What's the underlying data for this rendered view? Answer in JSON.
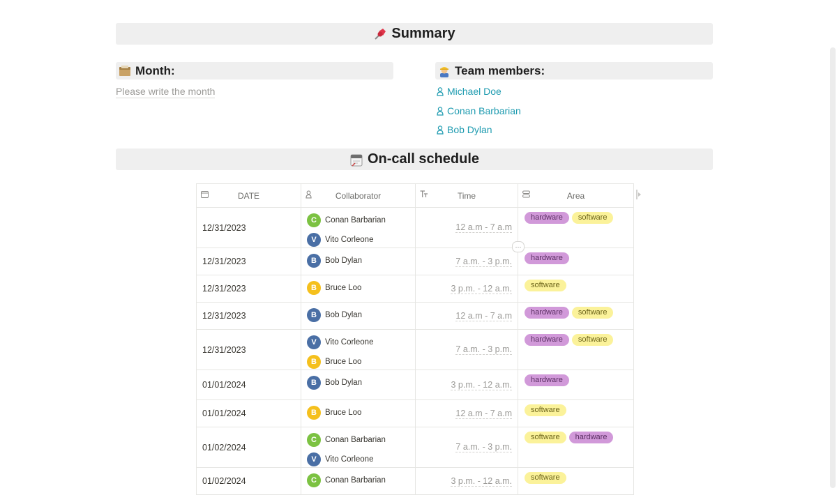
{
  "summary": {
    "title": "Summary",
    "icon": "pushpin-icon"
  },
  "month": {
    "label": "Month:",
    "placeholder": "Please write the month",
    "icon": "card-box-icon"
  },
  "team": {
    "label": "Team members:",
    "icon": "worker-icon",
    "members": [
      "Michael Doe",
      "Conan Barbarian",
      "Bob Dylan"
    ]
  },
  "schedule": {
    "title": "On-call schedule",
    "icon": "calendar-icon"
  },
  "table": {
    "columns": {
      "date": "DATE",
      "collaborator": "Collaborator",
      "time": "Time",
      "area": "Area"
    },
    "rows": [
      {
        "date": "12/31/2023",
        "people": [
          "Conan Barbarian",
          "Vito Corleone"
        ],
        "time": "12 a.m - 7 a.m",
        "areas": [
          "hardware",
          "software"
        ]
      },
      {
        "date": "12/31/2023",
        "people": [
          "Bob Dylan"
        ],
        "time": "7 a.m. - 3 p.m.",
        "areas": [
          "hardware"
        ]
      },
      {
        "date": "12/31/2023",
        "people": [
          "Bruce Loo"
        ],
        "time": "3 p.m. - 12 a.m.",
        "areas": [
          "software"
        ]
      },
      {
        "date": "12/31/2023",
        "people": [
          "Bob Dylan"
        ],
        "time": "12 a.m - 7 a.m",
        "areas": [
          "hardware",
          "software"
        ]
      },
      {
        "date": "12/31/2023",
        "people": [
          "Vito Corleone",
          "Bruce Loo"
        ],
        "time": "7 a.m. - 3 p.m.",
        "areas": [
          "hardware",
          "software"
        ]
      },
      {
        "date": "01/01/2024",
        "people": [
          "Bob Dylan"
        ],
        "time": "3 p.m. - 12 a.m.",
        "areas": [
          "hardware"
        ]
      },
      {
        "date": "01/01/2024",
        "people": [
          "Bruce Loo"
        ],
        "time": "12 a.m - 7 a.m",
        "areas": [
          "software"
        ]
      },
      {
        "date": "01/02/2024",
        "people": [
          "Conan Barbarian",
          "Vito Corleone"
        ],
        "time": "7 a.m. - 3 p.m.",
        "areas": [
          "software",
          "hardware"
        ]
      },
      {
        "date": "01/02/2024",
        "people": [
          "Conan Barbarian"
        ],
        "time": "3 p.m. - 12 a.m.",
        "areas": [
          "software"
        ]
      }
    ]
  },
  "avatars": {
    "Conan Barbarian": {
      "initial": "C",
      "color": "#7cc242"
    },
    "Vito Corleone": {
      "initial": "V",
      "color": "#4a6fa5"
    },
    "Bob Dylan": {
      "initial": "B",
      "color": "#4a6fa5"
    },
    "Bruce Loo": {
      "initial": "B",
      "color": "#f5c01d"
    }
  },
  "row_menu": "···"
}
